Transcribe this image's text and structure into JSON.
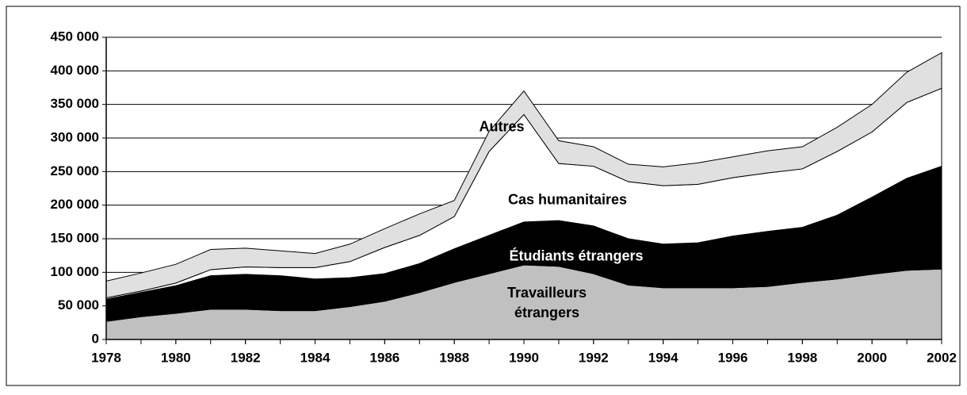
{
  "chart_data": {
    "type": "stacked_area",
    "x": [
      1978,
      1979,
      1980,
      1981,
      1982,
      1983,
      1984,
      1985,
      1986,
      1987,
      1988,
      1989,
      1990,
      1991,
      1992,
      1993,
      1994,
      1995,
      1996,
      1997,
      1998,
      1999,
      2000,
      2001,
      2002
    ],
    "series": [
      {
        "name": "Travailleurs étrangers",
        "color": "#c0c0c0",
        "values": [
          27000,
          34000,
          39000,
          45000,
          45000,
          43000,
          43000,
          49000,
          57000,
          70000,
          85000,
          98000,
          111000,
          109000,
          98000,
          81000,
          77000,
          77000,
          77000,
          79000,
          85000,
          90000,
          97000,
          103000,
          105000
        ]
      },
      {
        "name": "Étudiants étrangers",
        "color": "#000000",
        "values": [
          33000,
          36000,
          41000,
          50000,
          52000,
          52000,
          47000,
          43000,
          41000,
          43000,
          50000,
          57000,
          64000,
          68000,
          71000,
          69000,
          65000,
          67000,
          77000,
          82000,
          82000,
          95000,
          115000,
          137000,
          153000
        ]
      },
      {
        "name": "Cas humanitaires",
        "color": "#ffffff",
        "values": [
          2000,
          2000,
          4000,
          9000,
          11000,
          12000,
          17000,
          24000,
          39000,
          42000,
          48000,
          125000,
          160000,
          85000,
          89000,
          85000,
          87000,
          87000,
          87000,
          87000,
          87000,
          95000,
          97000,
          113000,
          116000
        ]
      },
      {
        "name": "Autres",
        "color": "#e0e0e0",
        "values": [
          25000,
          27000,
          28000,
          30000,
          28000,
          25000,
          21000,
          26000,
          28000,
          32000,
          24000,
          30000,
          35000,
          34000,
          29000,
          26000,
          28000,
          32000,
          31000,
          33000,
          33000,
          36000,
          41000,
          45000,
          53000
        ]
      }
    ],
    "xlim": [
      1978,
      2002
    ],
    "xticks": [
      1978,
      1980,
      1982,
      1984,
      1986,
      1988,
      1990,
      1992,
      1994,
      1996,
      1998,
      2000,
      2002
    ],
    "ylim": [
      0,
      450000
    ],
    "yticks": [
      0,
      {
        "value": 50000,
        "label": "50 000"
      },
      {
        "value": 100000,
        "label": "100 000"
      },
      {
        "value": 150000,
        "label": "150 000"
      },
      {
        "value": 200000,
        "label": "200 000"
      },
      {
        "value": 250000,
        "label": "250 000"
      },
      {
        "value": 300000,
        "label": "300 000"
      },
      {
        "value": 350000,
        "label": "350 000"
      },
      {
        "value": 400000,
        "label": "400 000"
      },
      {
        "value": 450000,
        "label": "450 000"
      }
    ],
    "grid": true
  }
}
